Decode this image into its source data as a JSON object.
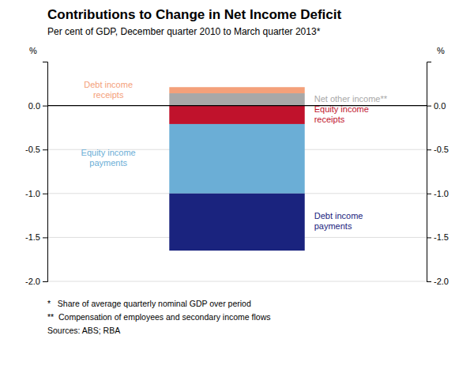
{
  "chart_data": {
    "type": "bar",
    "stacked": true,
    "title": "Contributions to Change in Net Income Deficit",
    "subtitle": "Per cent of GDP, December quarter 2010 to March quarter 2013*",
    "ylabel": "%",
    "y2label": "%",
    "categories": [
      null
    ],
    "series": [
      {
        "name": "Net other income**",
        "color": "#a8a8a8",
        "values": [
          0.14
        ]
      },
      {
        "name": "Debt income\nreceipts",
        "color": "#f4a07a",
        "values": [
          0.07
        ]
      },
      {
        "name": "Equity income\nreceipts",
        "color": "#c0122c",
        "values": [
          -0.21
        ]
      },
      {
        "name": "Equity income\npayments",
        "color": "#6baed6",
        "values": [
          -0.79
        ]
      },
      {
        "name": "Debt income\npayments",
        "color": "#1a237e",
        "values": [
          -0.65
        ]
      }
    ],
    "ylim": [
      -2.0,
      0.5
    ],
    "yticks": [
      {
        "value": -2.0,
        "label": "-2.0"
      },
      -1.5,
      {
        "value": -1.0,
        "label": "-1.0"
      },
      -0.5,
      {
        "value": 0.0,
        "label": "0.0"
      }
    ],
    "y2lim": [
      -2.0,
      0.5
    ],
    "y2ticks": [
      {
        "value": -2.0,
        "label": "-2.0"
      },
      -1.5,
      {
        "value": -1.0,
        "label": "-1.0"
      },
      -0.5,
      {
        "value": 0.0,
        "label": "0.0"
      }
    ],
    "grid": true,
    "footnotes": "*   Share of average quarterly nominal GDP over period\n**  Compensation of employees and secondary income flows\nSources: ABS; RBA"
  }
}
